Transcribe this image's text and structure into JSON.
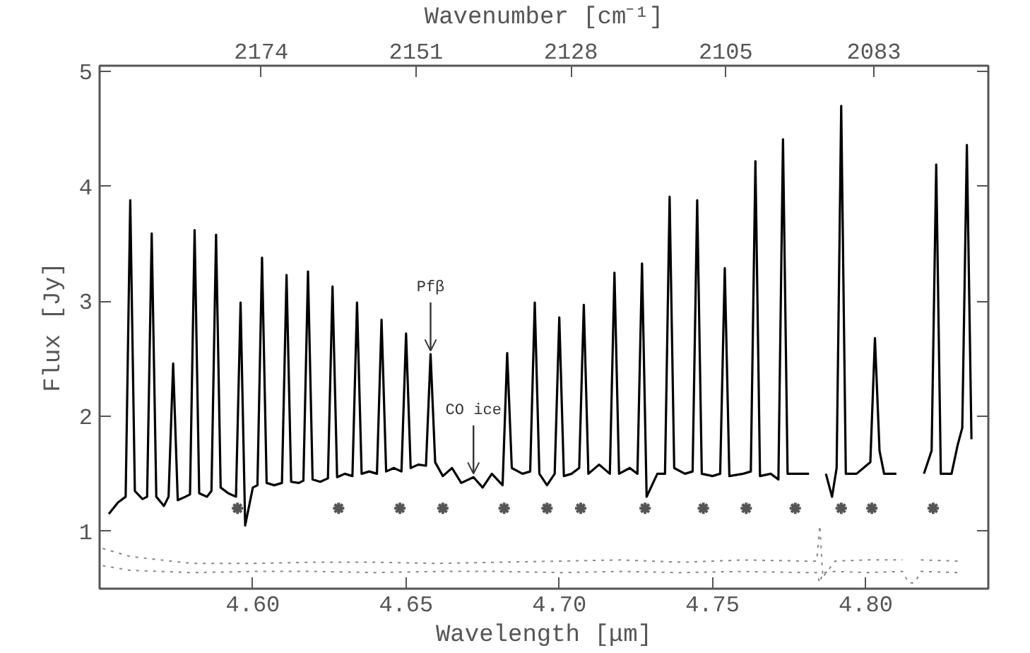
{
  "chart_data": {
    "type": "line",
    "xlabel": "Wavelength [μm]",
    "ylabel": "Flux [Jy]",
    "x2label": "Wavenumber [cm⁻¹]",
    "xlim": [
      4.55,
      4.84
    ],
    "xticks": [
      {
        "value": 4.6,
        "label": "4.60"
      },
      {
        "value": 4.65,
        "label": "4.65"
      },
      {
        "value": 4.7,
        "label": "4.70"
      },
      {
        "value": 4.75,
        "label": "4.75"
      },
      {
        "value": 4.8,
        "label": "4.80"
      }
    ],
    "ylim": [
      0.5,
      5.05
    ],
    "yticks": [
      1,
      2,
      3,
      4,
      5
    ],
    "x2lim": [
      2198,
      2066
    ],
    "x2ticks": [
      2174,
      2151,
      2128,
      2105,
      2083
    ],
    "series": [
      {
        "color": "#000000",
        "line_style": "solid",
        "x": [
          4.553,
          4.556,
          4.5585,
          4.56,
          4.5615,
          4.564,
          4.5655,
          4.567,
          4.5685,
          4.571,
          4.5725,
          4.574,
          4.5755,
          4.578,
          4.5795,
          4.581,
          4.5825,
          4.585,
          4.5865,
          4.588,
          4.5895,
          4.592,
          4.5945,
          4.596,
          4.5975,
          4.6,
          4.6015,
          4.603,
          4.6045,
          4.607,
          4.6095,
          4.611,
          4.6125,
          4.615,
          4.6165,
          4.618,
          4.6195,
          4.622,
          4.6245,
          4.626,
          4.6275,
          4.63,
          4.6325,
          4.634,
          4.6355,
          4.638,
          4.6405,
          4.642,
          4.6435,
          4.646,
          4.6485,
          4.65,
          4.6515,
          4.654,
          4.6565,
          4.658,
          4.6595,
          4.662,
          4.665,
          4.668,
          4.672,
          4.675,
          4.678,
          4.6815,
          4.683,
          4.6845,
          4.688,
          4.6905,
          4.692,
          4.6935,
          4.696,
          4.6985,
          4.7,
          4.7015,
          4.704,
          4.7065,
          4.708,
          4.7095,
          4.713,
          4.7165,
          4.718,
          4.7195,
          4.723,
          4.7255,
          4.727,
          4.7285,
          4.732,
          4.7345,
          4.736,
          4.7375,
          4.741,
          4.7435,
          4.745,
          4.7465,
          4.75,
          4.7525,
          4.754,
          4.7555,
          4.76,
          4.7625,
          4.764,
          4.7655,
          4.769,
          4.7715,
          4.773,
          4.7745,
          4.778,
          4.7815,
          4.783,
          4.785,
          4.787,
          4.789,
          4.7905,
          4.792,
          4.7935,
          4.797,
          4.8015,
          4.803,
          4.8045,
          4.806,
          4.81,
          4.815,
          4.819,
          4.8215,
          4.823,
          4.8245,
          4.828,
          4.83,
          4.8315,
          4.833,
          4.8345
        ],
        "values": [
          1.15,
          1.25,
          1.3,
          3.88,
          1.35,
          1.28,
          1.3,
          3.59,
          1.3,
          1.22,
          1.3,
          2.46,
          1.27,
          1.3,
          1.32,
          3.62,
          1.33,
          1.3,
          1.35,
          3.58,
          1.38,
          1.33,
          1.3,
          2.99,
          1.05,
          1.38,
          1.4,
          3.38,
          1.42,
          1.4,
          1.42,
          3.23,
          1.43,
          1.42,
          1.44,
          3.26,
          1.45,
          1.43,
          1.46,
          3.13,
          1.47,
          1.5,
          1.48,
          2.99,
          1.5,
          1.52,
          1.5,
          2.84,
          1.52,
          1.55,
          1.52,
          2.72,
          1.55,
          1.58,
          1.57,
          2.54,
          1.6,
          1.48,
          1.55,
          1.42,
          1.47,
          1.38,
          1.5,
          1.4,
          2.55,
          1.55,
          1.5,
          1.52,
          2.99,
          1.5,
          1.4,
          1.5,
          2.86,
          1.48,
          1.5,
          1.55,
          2.97,
          1.5,
          1.58,
          1.5,
          3.25,
          1.5,
          1.55,
          1.5,
          3.33,
          1.3,
          1.5,
          1.5,
          3.91,
          1.55,
          1.5,
          1.52,
          3.88,
          1.5,
          1.48,
          1.5,
          3.29,
          1.48,
          1.5,
          1.52,
          4.22,
          1.48,
          1.5,
          1.45,
          4.41,
          1.5,
          1.5,
          1.5,
          null,
          null,
          1.5,
          1.3,
          1.55,
          4.7,
          1.5,
          1.5,
          1.6,
          2.68,
          1.7,
          1.5,
          1.5,
          null,
          1.5,
          1.7,
          4.19,
          1.5,
          1.5,
          1.75,
          1.9,
          4.36,
          1.8
        ]
      },
      {
        "color": "#888888",
        "line_style": "dotted",
        "x": [
          4.551,
          4.56,
          4.58,
          4.6,
          4.62,
          4.64,
          4.66,
          4.68,
          4.7,
          4.72,
          4.74,
          4.76,
          4.78,
          4.784,
          4.785,
          4.786,
          4.79,
          4.8,
          4.812,
          4.8145,
          4.8155,
          4.818,
          4.83
        ],
        "values": [
          0.85,
          0.78,
          0.72,
          0.72,
          0.73,
          0.73,
          0.72,
          0.73,
          0.74,
          0.75,
          0.73,
          0.75,
          0.74,
          0.74,
          1.05,
          0.6,
          0.74,
          0.75,
          0.75,
          null,
          null,
          0.75,
          0.74
        ]
      },
      {
        "color": "#888888",
        "line_style": "dotted",
        "x": [
          4.551,
          4.56,
          4.58,
          4.6,
          4.62,
          4.64,
          4.66,
          4.68,
          4.7,
          4.72,
          4.74,
          4.76,
          4.78,
          4.784,
          4.785,
          4.786,
          4.79,
          4.8,
          4.812,
          4.814,
          4.816,
          4.818,
          4.83
        ],
        "values": [
          0.7,
          0.66,
          0.64,
          0.65,
          0.65,
          0.64,
          0.65,
          0.65,
          0.64,
          0.65,
          0.64,
          0.65,
          0.64,
          0.64,
          0.55,
          0.64,
          0.65,
          0.64,
          0.65,
          0.55,
          0.55,
          0.65,
          0.64
        ]
      },
      {
        "type": "scatter",
        "color": "#555555",
        "marker": "cross",
        "x": [
          4.595,
          4.628,
          4.648,
          4.662,
          4.682,
          4.696,
          4.707,
          4.728,
          4.747,
          4.761,
          4.777,
          4.792,
          4.802,
          4.822
        ],
        "values": [
          1.2,
          1.2,
          1.2,
          1.2,
          1.2,
          1.2,
          1.2,
          1.2,
          1.2,
          1.2,
          1.2,
          1.2,
          1.2,
          1.2
        ]
      }
    ],
    "annotations": [
      {
        "text": "Pfβ",
        "x": 4.658,
        "y": 2.54
      },
      {
        "text": "CO ice",
        "x": 4.672,
        "y": 1.47
      }
    ]
  }
}
